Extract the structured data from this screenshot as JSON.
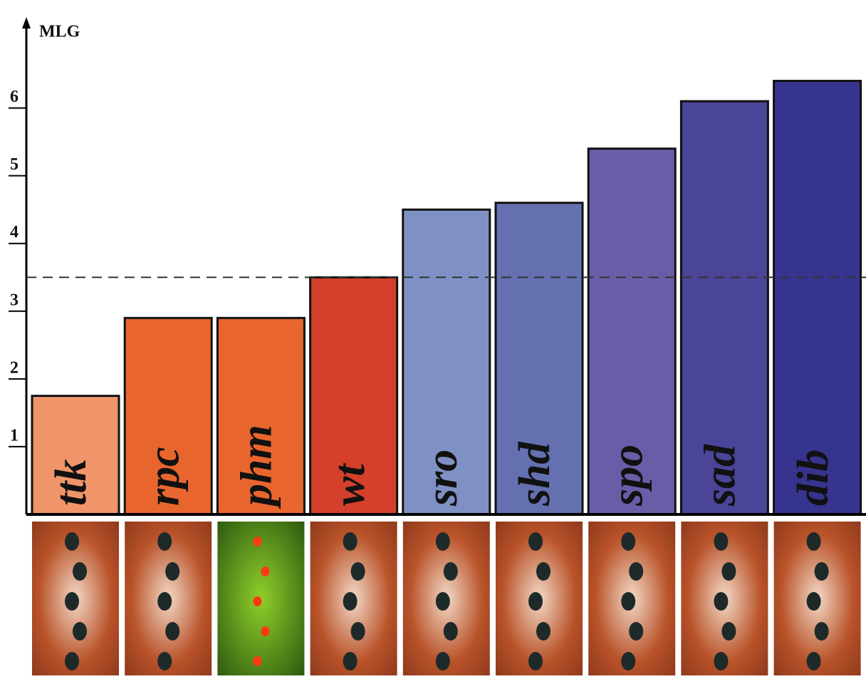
{
  "chart_data": {
    "type": "bar",
    "y_label": "MLG",
    "categories": [
      "ttk",
      "rpc",
      "phm",
      "wt",
      "sro",
      "shd",
      "spo",
      "sad",
      "dib"
    ],
    "values": [
      1.75,
      2.9,
      2.9,
      3.5,
      4.5,
      4.6,
      5.4,
      6.1,
      6.4
    ],
    "colors": [
      "#f0956a",
      "#e8662e",
      "#e8662e",
      "#d4402b",
      "#7f91c4",
      "#6470b0",
      "#6a5da8",
      "#4a4598",
      "#37348f"
    ],
    "reference_line": 3.5,
    "ylim": [
      0,
      7.3
    ],
    "yticks": [
      1,
      2,
      3,
      4,
      5,
      6
    ]
  }
}
